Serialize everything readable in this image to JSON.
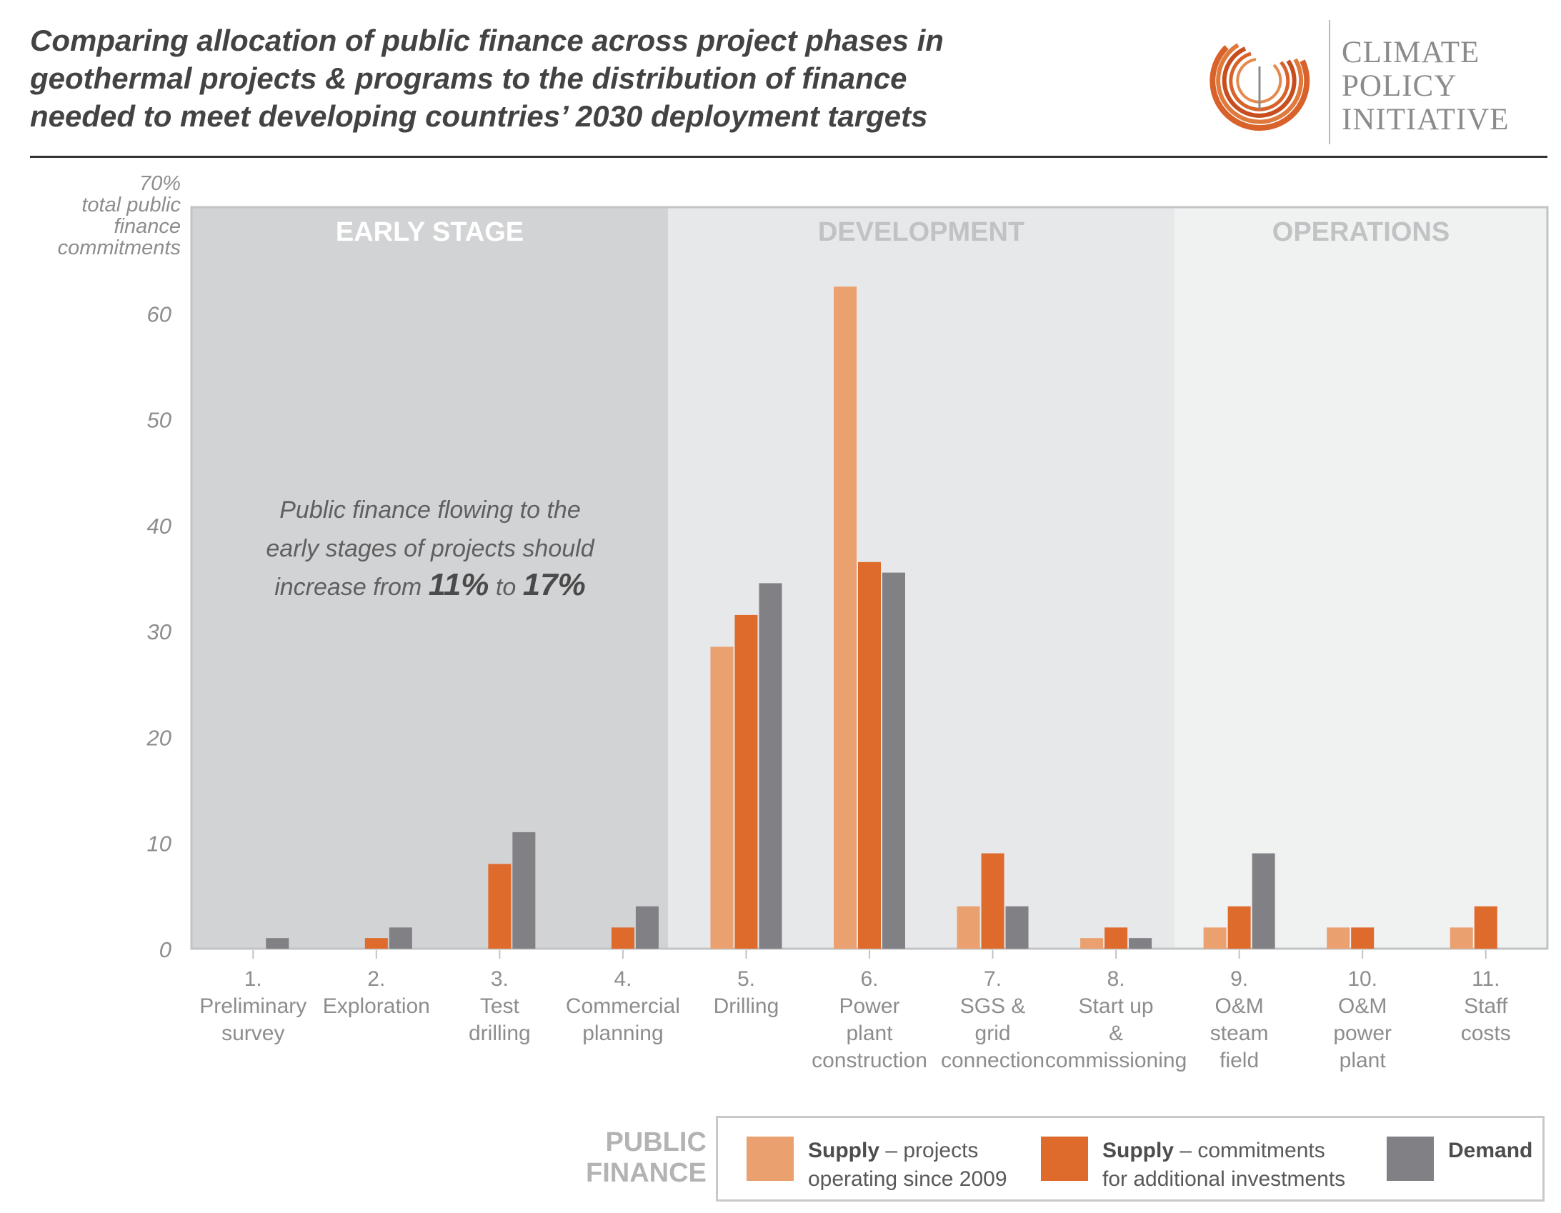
{
  "title_lines": [
    "Comparing allocation of public finance across project phases in",
    "geothermal projects & programs to the distribution of finance",
    "needed to meet developing countries’ 2030 deployment targets"
  ],
  "logo": {
    "lines": [
      "CLIMATE",
      "POLICY",
      "INITIATIVE"
    ],
    "color": "#d9622b"
  },
  "chart_data": {
    "type": "bar",
    "y_unit_lines": [
      "70%",
      "total public",
      "finance",
      "commitments"
    ],
    "ylim": [
      0,
      70
    ],
    "yticks": [
      0,
      10,
      20,
      30,
      40,
      50,
      60
    ],
    "grid": false,
    "phases": [
      {
        "label": "EARLY STAGE",
        "first": 0,
        "last": 3
      },
      {
        "label": "DEVELOPMENT",
        "first": 4,
        "last": 7
      },
      {
        "label": "OPERATIONS",
        "first": 8,
        "last": 10
      }
    ],
    "categories": [
      [
        "1.",
        "Preliminary",
        "survey"
      ],
      [
        "2.",
        "Exploration"
      ],
      [
        "3.",
        "Test",
        "drilling"
      ],
      [
        "4.",
        "Commercial",
        "planning"
      ],
      [
        "5.",
        "Drilling"
      ],
      [
        "6.",
        "Power",
        "plant",
        "construction"
      ],
      [
        "7.",
        "SGS &",
        "grid",
        "connection"
      ],
      [
        "8.",
        "Start up",
        "&",
        "commissioning"
      ],
      [
        "9.",
        "O&M",
        "steam",
        "field"
      ],
      [
        "10.",
        "O&M",
        "power",
        "plant"
      ],
      [
        "11.",
        "Staff",
        "costs"
      ]
    ],
    "series": [
      {
        "bold": "Supply",
        "rest_lines": [
          " – projects",
          "operating since 2009"
        ],
        "color": "#eaa06f",
        "values": [
          0,
          0,
          0,
          0,
          28.5,
          62.5,
          4,
          1,
          2,
          2,
          2
        ]
      },
      {
        "bold": "Supply",
        "rest_lines": [
          " – commitments",
          "for additional investments"
        ],
        "color": "#de6a2c",
        "values": [
          0,
          1,
          8,
          2,
          31.5,
          36.5,
          9,
          2,
          4,
          2,
          4
        ]
      },
      {
        "bold": "Demand",
        "rest_lines": [],
        "color": "#818185",
        "values": [
          1,
          2,
          11,
          4,
          34.5,
          35.5,
          4,
          1,
          9,
          0,
          0
        ]
      }
    ],
    "annotation": {
      "lines": [
        "Public finance flowing to the",
        "early stages of projects should"
      ],
      "last_line": {
        "pre": "increase from ",
        "v1": "11%",
        "mid": " to ",
        "v2": "17%"
      }
    },
    "legend_title_lines": [
      "PUBLIC",
      "FINANCE"
    ]
  },
  "colors": {
    "phase_bg": [
      "#d2d3d5",
      "#e7e8ea",
      "#f0f1f1"
    ],
    "phase_label": [
      "#ffffff",
      "#c1c2c4",
      "#c1c2c4"
    ],
    "axis_text": "#8d8d8d",
    "border": "#c2c3c5"
  }
}
